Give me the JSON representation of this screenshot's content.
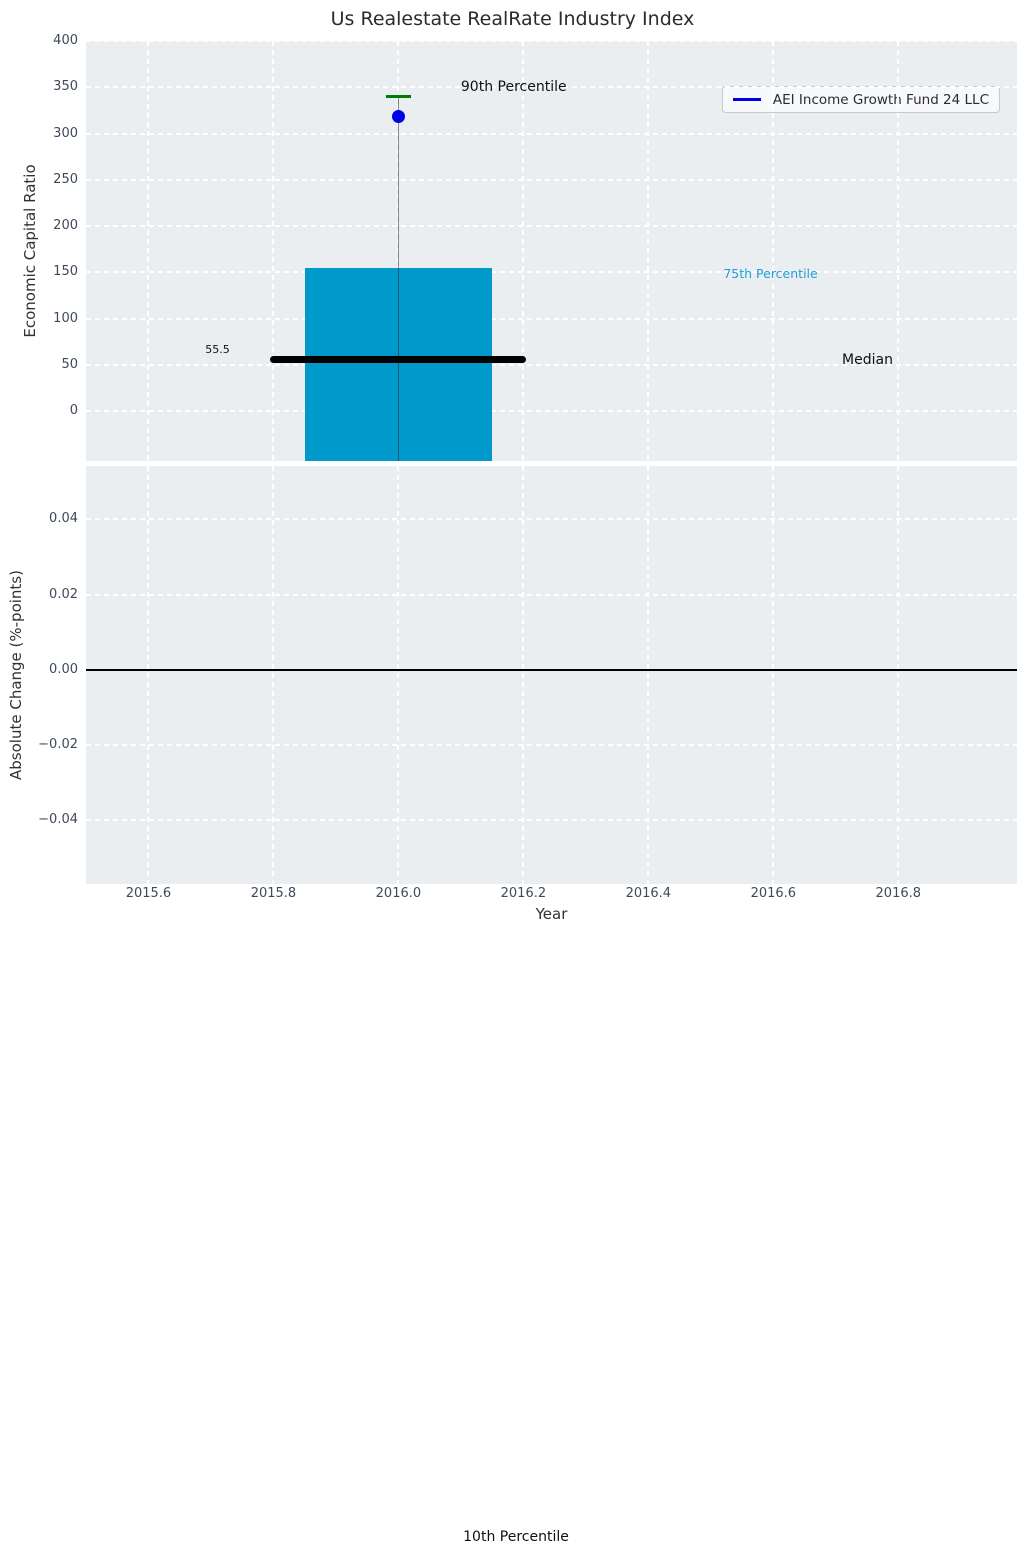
{
  "figure": {
    "title": "Us Realestate RealRate Industry Index",
    "panel_bg": "#eaeef0",
    "grid_color": "#ffffff",
    "tick_color": "#3e4a5a",
    "label_color": "#2e3338"
  },
  "legend": {
    "label": "AEI Income Growth Fund 24 LLC",
    "line_color": "#0000e0",
    "position": "upper right"
  },
  "chart_data": [
    {
      "id": "top",
      "type": "bar",
      "title": "Us Realestate RealRate Industry Index",
      "ylabel": "Economic Capital Ratio",
      "ylim": [
        -54,
        400
      ],
      "yticks": [
        400,
        350,
        300,
        250,
        200,
        150,
        100,
        50,
        0
      ],
      "ytick_labels": [
        "400",
        "350",
        "300",
        "250",
        "200",
        "150",
        "100",
        "50",
        "0"
      ],
      "xlim": [
        2015.5,
        2016.99
      ],
      "grid": true,
      "box": {
        "x": 2016,
        "bar_halfwidth": 0.15,
        "bar_top_value": 155,
        "bar_color": "#0099cc",
        "whisker_top_value": 340,
        "whisker_color": "rgba(40,40,40,0.55)",
        "cap_color": "#007d00",
        "median": 55.5,
        "median_label": "55.5",
        "median_span": [
          2015.8,
          2016.2
        ],
        "median_color": "#000000",
        "p10_clipped_below_axis": true
      },
      "point": {
        "name": "AEI Income Growth Fund 24 LLC",
        "x": 2016,
        "y": 318,
        "color": "#0000e6"
      },
      "annotations": [
        {
          "text": "90th Percentile",
          "x": 2016.1,
          "y": 350,
          "ha": "left",
          "color": "#111111",
          "size": 14
        },
        {
          "text": "75th Percentile",
          "x": 2016.52,
          "y": 148,
          "ha": "left",
          "color": "#1fa0d6",
          "size": 12.5
        },
        {
          "text": "Median",
          "x": 2016.71,
          "y": 54,
          "ha": "left",
          "color": "#111111",
          "size": 14
        },
        {
          "text": "55.5",
          "x": 2015.73,
          "y": 66,
          "ha": "right",
          "color": "#111111",
          "size": 11
        }
      ]
    },
    {
      "id": "bottom",
      "type": "line",
      "ylabel": "Absolute Change (%-points)",
      "xlabel": "Year",
      "ylim": [
        -0.0569,
        0.0542
      ],
      "yticks": [
        0.04,
        0.02,
        0,
        -0.02,
        -0.04
      ],
      "ytick_labels": [
        "0.04",
        "0.02",
        "0.00",
        "−0.02",
        "−0.04"
      ],
      "xticks": [
        2015.6,
        2015.8,
        2016.0,
        2016.2,
        2016.4,
        2016.6,
        2016.8
      ],
      "xtick_labels": [
        "2015.6",
        "2015.8",
        "2016.0",
        "2016.2",
        "2016.4",
        "2016.6",
        "2016.8"
      ],
      "zero_line": 0,
      "zero_line_color": "#000000",
      "series": []
    }
  ],
  "footer_annotation": {
    "text": "10th Percentile"
  }
}
